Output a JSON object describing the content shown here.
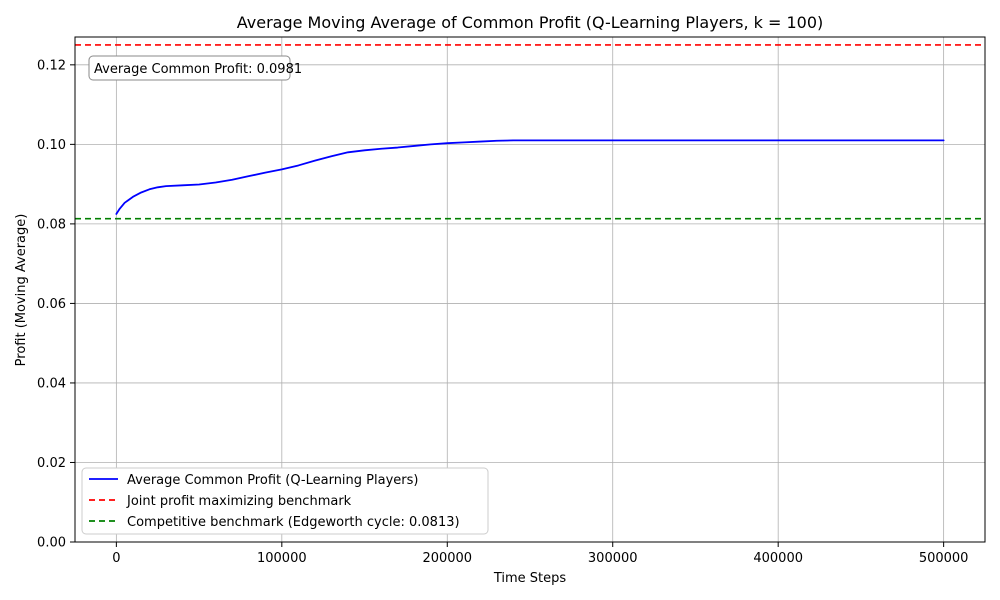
{
  "chart_data": {
    "type": "line",
    "title": "Average Moving Average of Common Profit (Q-Learning Players, k = 100)",
    "xlabel": "Time Steps",
    "ylabel": "Profit (Moving Average)",
    "xlim": [
      -25000,
      525000
    ],
    "ylim": [
      0,
      0.127
    ],
    "x_ticks": [
      0,
      100000,
      200000,
      300000,
      400000,
      500000
    ],
    "x_tick_labels": [
      "0",
      "100000",
      "200000",
      "300000",
      "400000",
      "500000"
    ],
    "y_ticks": [
      0,
      0.02,
      0.04,
      0.06,
      0.08,
      0.1,
      0.12
    ],
    "y_tick_labels": [
      "0.00",
      "0.02",
      "0.04",
      "0.06",
      "0.08",
      "0.10",
      "0.12"
    ],
    "grid": true,
    "legend_position": "lower-left",
    "series": [
      {
        "name": "Average Common Profit (Q-Learning Players)",
        "color": "#0000ff",
        "style": "solid",
        "x": [
          0,
          2000,
          5000,
          10000,
          15000,
          20000,
          25000,
          30000,
          40000,
          50000,
          60000,
          70000,
          80000,
          90000,
          100000,
          110000,
          120000,
          130000,
          140000,
          150000,
          160000,
          170000,
          180000,
          190000,
          200000,
          210000,
          220000,
          230000,
          240000,
          260000,
          280000,
          300000,
          350000,
          400000,
          450000,
          500000
        ],
        "y": [
          0.0825,
          0.0838,
          0.0853,
          0.0868,
          0.0879,
          0.0887,
          0.0892,
          0.0895,
          0.0897,
          0.0899,
          0.0904,
          0.0911,
          0.092,
          0.0929,
          0.0937,
          0.0947,
          0.0959,
          0.097,
          0.098,
          0.0985,
          0.0989,
          0.0992,
          0.0996,
          0.1,
          0.1003,
          0.1005,
          0.1007,
          0.1009,
          0.101,
          0.101,
          0.101,
          0.101,
          0.101,
          0.101,
          0.101,
          0.101
        ]
      },
      {
        "name": "Joint profit maximizing benchmark",
        "color": "#ff0000",
        "style": "dashed",
        "y_constant": 0.125
      },
      {
        "name": "Competitive benchmark (Edgeworth cycle: 0.0813)",
        "color": "#008000",
        "style": "dashed",
        "y_constant": 0.0813
      }
    ],
    "annotation": "Average Common Profit: 0.0981"
  }
}
